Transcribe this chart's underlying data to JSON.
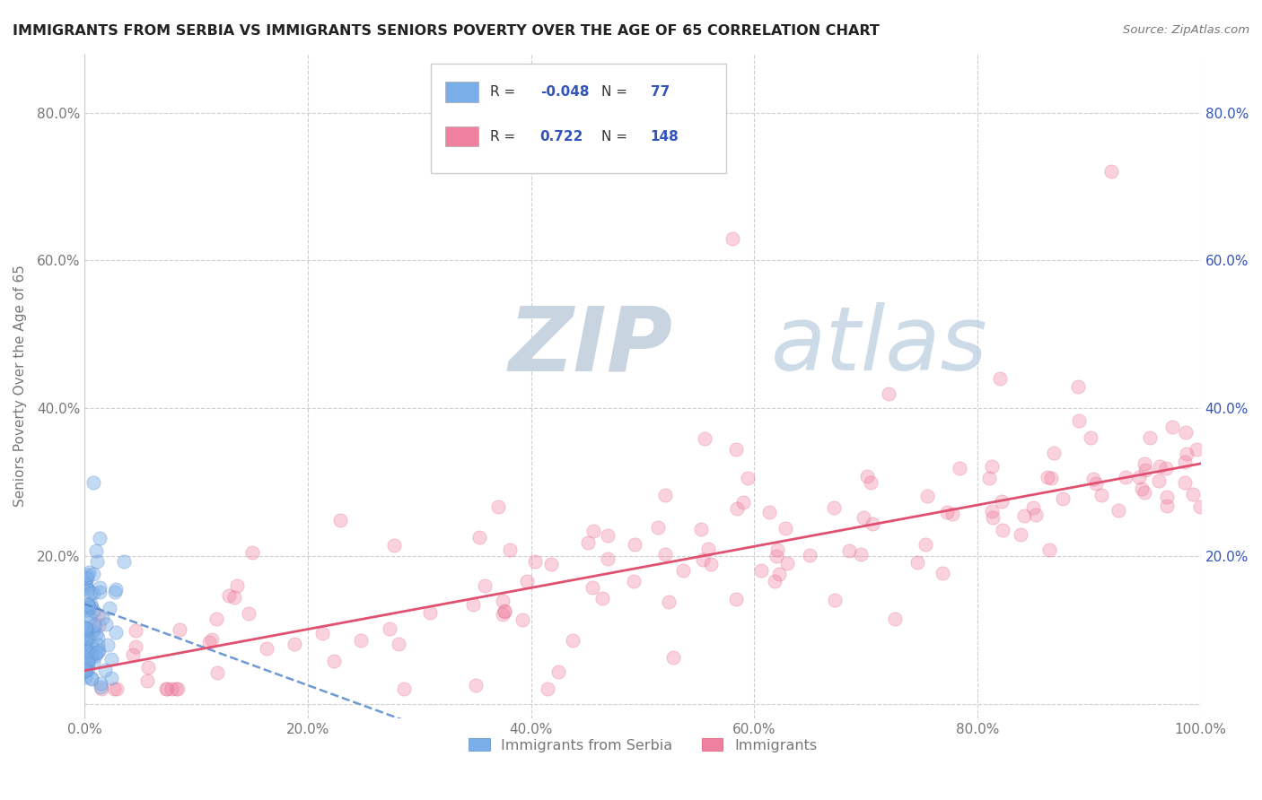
{
  "title": "IMMIGRANTS FROM SERBIA VS IMMIGRANTS SENIORS POVERTY OVER THE AGE OF 65 CORRELATION CHART",
  "source": "Source: ZipAtlas.com",
  "ylabel": "Seniors Poverty Over the Age of 65",
  "watermark_zip": "ZIP",
  "watermark_atlas": "atlas",
  "xlim": [
    0.0,
    1.0
  ],
  "ylim": [
    -0.02,
    0.88
  ],
  "xticks": [
    0.0,
    0.2,
    0.4,
    0.6,
    0.8,
    1.0
  ],
  "yticks": [
    0.0,
    0.2,
    0.4,
    0.6,
    0.8
  ],
  "xticklabels": [
    "0.0%",
    "20.0%",
    "40.0%",
    "60.0%",
    "80.0%",
    "100.0%"
  ],
  "left_yticklabels": [
    "",
    "20.0%",
    "40.0%",
    "60.0%",
    "80.0%"
  ],
  "right_yticklabels": [
    "",
    "20.0%",
    "40.0%",
    "60.0%",
    "80.0%"
  ],
  "background_color": "#ffffff",
  "grid_color": "#bbbbbb",
  "title_color": "#222222",
  "axis_color": "#777777",
  "watermark_zip_color": "#c8d4e0",
  "watermark_atlas_color": "#b8cce0",
  "scatter_size": 120,
  "scatter_alpha": 0.35,
  "serbia_color": "#7aaee8",
  "serbia_edge_color": "#5588cc",
  "immigrants_color": "#f080a0",
  "immigrants_edge_color": "#e05070",
  "serbia_line_color": "#5588cc",
  "immigrants_line_color": "#e05070",
  "legend_r_color": "#3355bb",
  "serbia_R": "-0.048",
  "serbia_N": "77",
  "immigrants_R": "0.722",
  "immigrants_N": "148",
  "serbia_regression_slope": -0.55,
  "serbia_regression_intercept": 0.135,
  "immigrants_regression_slope": 0.28,
  "immigrants_regression_intercept": 0.045
}
